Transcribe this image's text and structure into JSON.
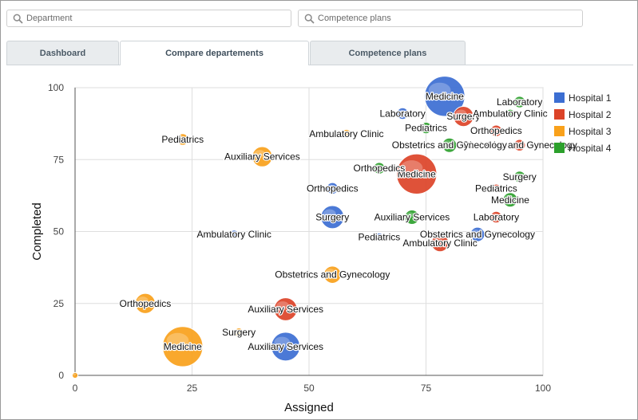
{
  "filters": {
    "department_placeholder": "Department",
    "competence_placeholder": "Competence plans"
  },
  "tabs": [
    {
      "label": "Dashboard",
      "active": false
    },
    {
      "label": "Compare departements",
      "active": true
    },
    {
      "label": "Competence plans",
      "active": false
    }
  ],
  "colors": {
    "Hospital 1": "#3c6ed2",
    "Hospital 2": "#dc4328",
    "Hospital 3": "#f9a11b",
    "Hospital 4": "#2ca02c"
  },
  "chart_data": {
    "type": "scatter",
    "subtype": "bubble",
    "title": "",
    "xlabel": "Assigned",
    "ylabel": "Completed",
    "xlim": [
      0,
      100
    ],
    "ylim": [
      0,
      100
    ],
    "xticks": [
      "0",
      "25",
      "50",
      "75",
      "100"
    ],
    "yticks": [
      "0",
      "25",
      "50",
      "75",
      "100"
    ],
    "grid": true,
    "legend_position": "right",
    "series": [
      {
        "name": "Hospital 1",
        "points": [
          {
            "x": 79,
            "y": 97,
            "size": 7,
            "label": "Medicine"
          },
          {
            "x": 70,
            "y": 91,
            "size": 2,
            "label": "Laboratory"
          },
          {
            "x": 55,
            "y": 65,
            "size": 2,
            "label": "Orthopedics"
          },
          {
            "x": 55,
            "y": 55,
            "size": 4,
            "label": "Surgery"
          },
          {
            "x": 34,
            "y": 49,
            "size": 1.5,
            "label": "Ambulatory Clinic"
          },
          {
            "x": 65,
            "y": 48,
            "size": 1.5,
            "label": "Pediatrics"
          },
          {
            "x": 86,
            "y": 49,
            "size": 2.5,
            "label": "Obstetrics and Gynecology"
          },
          {
            "x": 45,
            "y": 10,
            "size": 5,
            "label": "Auxiliary Services"
          }
        ]
      },
      {
        "name": "Hospital 2",
        "points": [
          {
            "x": 83,
            "y": 90,
            "size": 3.5,
            "label": "Surgery"
          },
          {
            "x": 90,
            "y": 85,
            "size": 2,
            "label": "Orthopedics"
          },
          {
            "x": 95,
            "y": 80,
            "size": 2,
            "label": "Obstetrics and Gynecology"
          },
          {
            "x": 73,
            "y": 70,
            "size": 7,
            "label": "Medicine"
          },
          {
            "x": 90,
            "y": 65,
            "size": 1.5,
            "label": "Pediatrics"
          },
          {
            "x": 90,
            "y": 55,
            "size": 2,
            "label": "Laboratory"
          },
          {
            "x": 78,
            "y": 46,
            "size": 3,
            "label": "Ambulatory Clinic"
          },
          {
            "x": 45,
            "y": 23,
            "size": 4,
            "label": "Auxiliary Services"
          }
        ]
      },
      {
        "name": "Hospital 3",
        "points": [
          {
            "x": 58,
            "y": 84,
            "size": 1.5,
            "label": "Ambulatory Clinic"
          },
          {
            "x": 23,
            "y": 82,
            "size": 2,
            "label": "Pediatrics"
          },
          {
            "x": 40,
            "y": 76,
            "size": 3.5,
            "label": "Auxiliary Services"
          },
          {
            "x": 55,
            "y": 35,
            "size": 3,
            "label": "Obstetrics and Gynecology"
          },
          {
            "x": 15,
            "y": 25,
            "size": 3.5,
            "label": "Orthopedics"
          },
          {
            "x": 35,
            "y": 15,
            "size": 1.5,
            "label": "Surgery"
          },
          {
            "x": 23,
            "y": 10,
            "size": 7,
            "label": "Medicine"
          },
          {
            "x": 0,
            "y": 0,
            "size": 1,
            "label": ""
          }
        ]
      },
      {
        "name": "Hospital 4",
        "points": [
          {
            "x": 95,
            "y": 95,
            "size": 2,
            "label": "Laboratory"
          },
          {
            "x": 93,
            "y": 91,
            "size": 1.5,
            "label": "Ambulatory Clinic"
          },
          {
            "x": 75,
            "y": 86,
            "size": 2,
            "label": "Pediatrics"
          },
          {
            "x": 80,
            "y": 80,
            "size": 2.5,
            "label": "Obstetrics and Gynecology"
          },
          {
            "x": 65,
            "y": 72,
            "size": 2,
            "label": "Orthopedics"
          },
          {
            "x": 95,
            "y": 69,
            "size": 2,
            "label": "Surgery"
          },
          {
            "x": 93,
            "y": 61,
            "size": 2.5,
            "label": "Medicine"
          },
          {
            "x": 72,
            "y": 55,
            "size": 2.5,
            "label": "Auxiliary Services"
          }
        ]
      }
    ]
  }
}
